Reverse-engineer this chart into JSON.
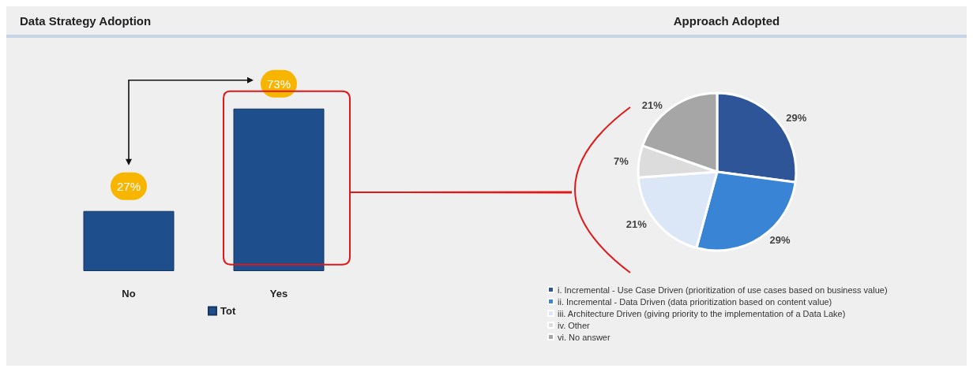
{
  "chart_data": [
    {
      "type": "bar",
      "title": "Data Strategy Adoption",
      "categories": [
        "No",
        "Yes"
      ],
      "series": [
        {
          "name": "Tot",
          "color": "#1f4e8c",
          "values": [
            27,
            73
          ],
          "value_labels": [
            "27%",
            "73%"
          ]
        }
      ],
      "legend": "bottom"
    },
    {
      "type": "pie",
      "title": "Approach Adopted",
      "categories": [
        "i. Incremental - Use Case Driven (prioritization of use cases based on business value)",
        "ii. Incremental - Data Driven (data prioritization based on content value)",
        "iii. Architecture Driven (giving priority to the implementation of a Data Lake)",
        "iv. Other",
        "vi. No answer"
      ],
      "values": [
        29,
        29,
        21,
        7,
        21
      ],
      "colors": [
        "#2e5597",
        "#3a84d6",
        "#dbe7f7",
        "#dcdcdc",
        "#a6a6a6"
      ],
      "value_labels": [
        "29%",
        "29%",
        "21%",
        "7%",
        "21%"
      ],
      "legend": "bottom"
    }
  ]
}
